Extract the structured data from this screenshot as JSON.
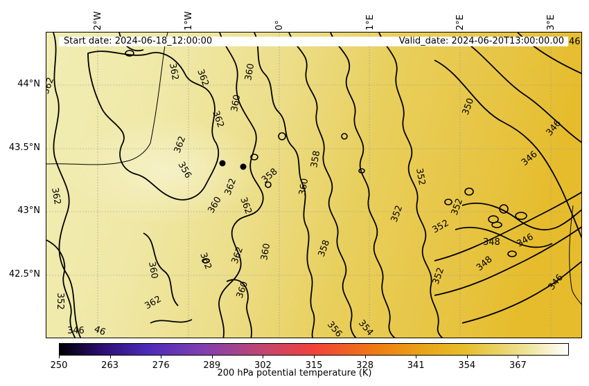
{
  "banner": {
    "start": "Start date: 2024-06-18_12:00:00",
    "valid": "Valid_date: 2024-06-20T13:00:00.00"
  },
  "lon_labels": [
    "2°W",
    "1°W",
    "0°",
    "1°E",
    "2°E",
    "3°E"
  ],
  "lat_labels": [
    "44°N",
    "43.5°N",
    "43°N",
    "42.5°N"
  ],
  "contour_labels": [
    "362",
    "362",
    "362",
    "360",
    "362",
    "360",
    "362",
    "356",
    "362",
    "358",
    "358",
    "352",
    "350",
    "346",
    "362",
    "360",
    "362",
    "360",
    "352",
    "346",
    "352",
    "352",
    "348",
    "346",
    "358",
    "360",
    "362",
    "362",
    "360",
    "352",
    "348",
    "346",
    "362",
    "360",
    "356",
    "354",
    "352",
    "346",
    "46"
  ],
  "colorbar": {
    "ticks": [
      "250",
      "263",
      "276",
      "289",
      "302",
      "315",
      "328",
      "341",
      "354",
      "367"
    ],
    "label": "200 hPa potential temperature (K)"
  },
  "colors": {
    "cold_side": "#f3efb8",
    "warm_side": "#e9bd2a"
  }
}
